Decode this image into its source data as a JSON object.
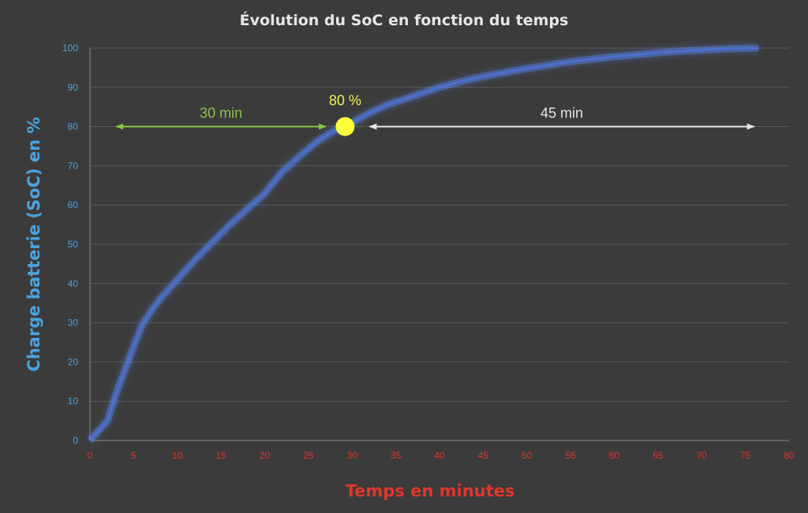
{
  "chart_data": {
    "type": "line",
    "title": "Évolution du SoC en fonction du temps",
    "xlabel": "Temps en minutes",
    "ylabel": "Charge batterie (SoC) en %",
    "xlim": [
      0,
      80
    ],
    "ylim": [
      0,
      100
    ],
    "xticks": [
      "0",
      "5",
      "10",
      "15",
      "20",
      "25",
      "30",
      "35",
      "40",
      "45",
      "50",
      "55",
      "60",
      "65",
      "70",
      "75",
      "80"
    ],
    "yticks": [
      "0",
      "10",
      "20",
      "30",
      "40",
      "50",
      "60",
      "70",
      "80",
      "90",
      "100"
    ],
    "grid": "horizontal",
    "series": [
      {
        "x": [
          0,
          1,
          2,
          3,
          4,
          5,
          6,
          7,
          8,
          9,
          10,
          12,
          14,
          16,
          18,
          20,
          22,
          24,
          26,
          28,
          29.2,
          30,
          32,
          34,
          36,
          38,
          40,
          42,
          44,
          46,
          48,
          50,
          52,
          54,
          56,
          58,
          60,
          62,
          64,
          66,
          68,
          70,
          72,
          74,
          76.5
        ],
        "y": [
          0,
          2.5,
          5,
          12,
          18,
          24,
          29.5,
          33,
          36,
          38.5,
          41,
          46,
          50.5,
          55,
          59,
          63,
          68.5,
          72.5,
          76.2,
          79,
          80,
          81,
          83.5,
          85.5,
          87,
          88.5,
          90,
          91.2,
          92.3,
          93.2,
          94,
          94.8,
          95.5,
          96.2,
          96.8,
          97.3,
          97.8,
          98.2,
          98.6,
          99,
          99.3,
          99.5,
          99.7,
          99.9,
          100
        ]
      }
    ],
    "marker": {
      "x": 29.2,
      "y": 80,
      "label": "80 %"
    },
    "annotations": [
      {
        "label": "30 min",
        "x_start": 3,
        "x_end": 27,
        "y": 80
      },
      {
        "label": "45 min",
        "x_start": 32,
        "x_end": 76,
        "y": 80
      }
    ],
    "colors": {
      "background": "#3b3b3b",
      "grid": "#5a5a5a",
      "axis": "#8a8a8a",
      "line": "#4d6fd6",
      "glow": "#5b8cff",
      "marker": "#ffff3a",
      "marker_label": "#f3f05a",
      "arrow_30": "#8bc34a",
      "arrow_45": "#e6e6e6",
      "yaxis_text": "#4aa3df",
      "xaxis_text": "#e0362b"
    }
  }
}
